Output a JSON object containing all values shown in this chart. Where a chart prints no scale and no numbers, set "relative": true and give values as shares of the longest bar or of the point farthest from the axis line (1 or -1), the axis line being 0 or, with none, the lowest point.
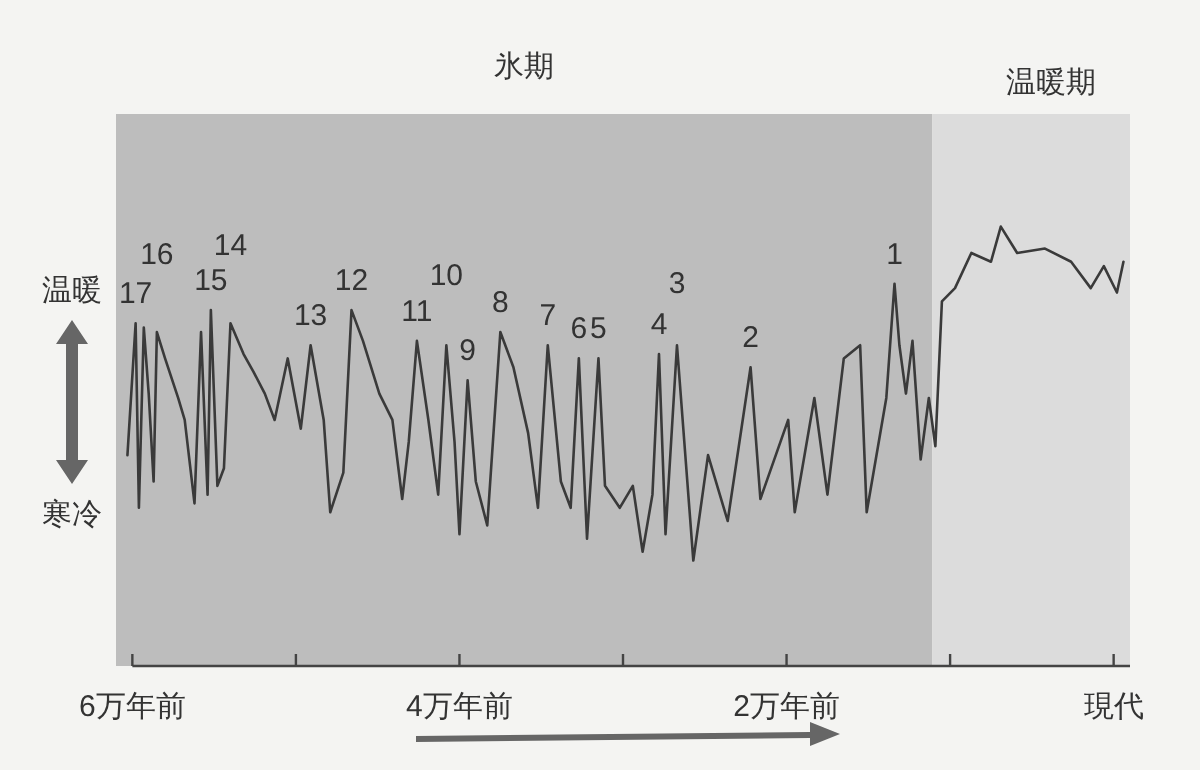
{
  "chart_data": {
    "type": "line",
    "relative": true,
    "grid": false,
    "xlim": [
      6.1,
      -0.1
    ],
    "xticks": [
      {
        "value": 6,
        "label": "6万年前"
      },
      {
        "value": 5,
        "label": null
      },
      {
        "value": 4,
        "label": "4万年前"
      },
      {
        "value": 3,
        "label": null
      },
      {
        "value": 2,
        "label": "2万年前"
      },
      {
        "value": 1,
        "label": null
      },
      {
        "value": 0,
        "label": "現代"
      }
    ],
    "bands": [
      {
        "axis": "x",
        "from": 6.1,
        "to": 1.11,
        "label": "氷期",
        "color": "#bdbdbd"
      },
      {
        "axis": "x",
        "from": 1.11,
        "to": -0.1,
        "label": "温暖期",
        "color": "#dcdcdc"
      }
    ],
    "series": [
      {
        "color": "#3a3a3a",
        "x": [
          6.03,
          5.98,
          5.96,
          5.93,
          5.9,
          5.87,
          5.85,
          5.8,
          5.72,
          5.68,
          5.62,
          5.58,
          5.54,
          5.52,
          5.48,
          5.44,
          5.4,
          5.32,
          5.26,
          5.19,
          5.13,
          5.05,
          4.97,
          4.91,
          4.83,
          4.79,
          4.71,
          4.66,
          4.59,
          4.49,
          4.41,
          4.35,
          4.31,
          4.26,
          4.19,
          4.13,
          4.08,
          4.03,
          4,
          3.95,
          3.9,
          3.83,
          3.75,
          3.67,
          3.58,
          3.52,
          3.46,
          3.38,
          3.32,
          3.27,
          3.22,
          3.15,
          3.11,
          3.02,
          2.94,
          2.88,
          2.82,
          2.78,
          2.74,
          2.67,
          2.57,
          2.48,
          2.36,
          2.22,
          2.16,
          1.99,
          1.95,
          1.83,
          1.75,
          1.65,
          1.55,
          1.51,
          1.39,
          1.34,
          1.31,
          1.27,
          1.23,
          1.18,
          1.13,
          1.09,
          1.05,
          0.97,
          0.87,
          0.75,
          0.69,
          0.59,
          0.42,
          0.26,
          0.14,
          0.06,
          -0.02,
          -0.06
        ],
        "values": [
          0.48,
          0.78,
          0.36,
          0.77,
          0.62,
          0.42,
          0.76,
          0.7,
          0.61,
          0.56,
          0.37,
          0.76,
          0.39,
          0.81,
          0.41,
          0.45,
          0.78,
          0.71,
          0.67,
          0.62,
          0.56,
          0.7,
          0.54,
          0.73,
          0.56,
          0.35,
          0.44,
          0.81,
          0.74,
          0.62,
          0.56,
          0.38,
          0.51,
          0.74,
          0.56,
          0.39,
          0.73,
          0.51,
          0.3,
          0.65,
          0.42,
          0.32,
          0.76,
          0.68,
          0.53,
          0.36,
          0.73,
          0.42,
          0.36,
          0.7,
          0.29,
          0.7,
          0.41,
          0.36,
          0.41,
          0.26,
          0.39,
          0.71,
          0.3,
          0.73,
          0.24,
          0.48,
          0.33,
          0.68,
          0.38,
          0.56,
          0.35,
          0.61,
          0.39,
          0.7,
          0.73,
          0.35,
          0.61,
          0.87,
          0.73,
          0.62,
          0.74,
          0.47,
          0.61,
          0.5,
          0.83,
          0.86,
          0.94,
          0.92,
          1,
          0.94,
          0.95,
          0.92,
          0.86,
          0.91,
          0.85,
          0.92
        ]
      }
    ],
    "annotations": [
      "温暖",
      "寒冷",
      {
        "text": "17",
        "x": 5.98,
        "y": 0.78
      },
      {
        "text": "16",
        "x": 5.85,
        "y": 0.76
      },
      {
        "text": "15",
        "x": 5.52,
        "y": 0.81
      },
      {
        "text": "14",
        "x": 5.4,
        "y": 0.78
      },
      {
        "text": "13",
        "x": 4.91,
        "y": 0.73
      },
      {
        "text": "12",
        "x": 4.66,
        "y": 0.81
      },
      {
        "text": "11",
        "x": 4.26,
        "y": 0.74
      },
      {
        "text": "10",
        "x": 4.08,
        "y": 0.73
      },
      {
        "text": "9",
        "x": 3.95,
        "y": 0.65
      },
      {
        "text": "8",
        "x": 3.75,
        "y": 0.76
      },
      {
        "text": "7",
        "x": 3.46,
        "y": 0.73
      },
      {
        "text": "6",
        "x": 3.27,
        "y": 0.7
      },
      {
        "text": "5",
        "x": 3.15,
        "y": 0.7
      },
      {
        "text": "4",
        "x": 2.78,
        "y": 0.71
      },
      {
        "text": "3",
        "x": 2.67,
        "y": 0.73
      },
      {
        "text": "2",
        "x": 2.22,
        "y": 0.68
      },
      {
        "text": "1",
        "x": 1.34,
        "y": 0.87
      }
    ]
  }
}
